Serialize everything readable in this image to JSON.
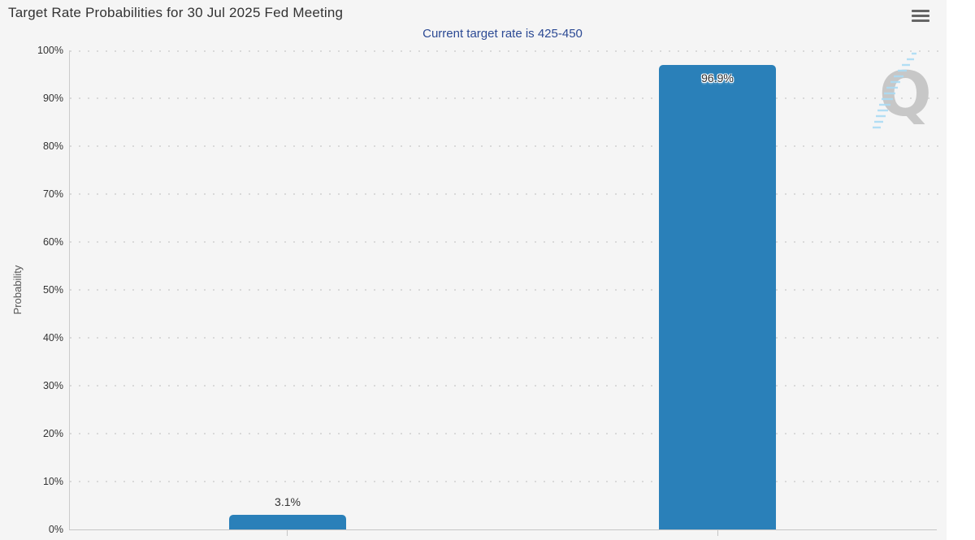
{
  "header": {
    "title": "Target Rate Probabilities for 30 Jul 2025 Fed Meeting",
    "menu_icon": "hamburger-menu-icon"
  },
  "chart_data": {
    "type": "bar",
    "title": "Target Rate Probabilities for 30 Jul 2025 Fed Meeting",
    "subtitle": "Current target rate is 425-450",
    "ylabel": "Probability",
    "xlabel": "",
    "ylim": [
      0,
      100
    ],
    "ytick_interval": 10,
    "ytick_labels": [
      "100%",
      "90%",
      "80%",
      "70%",
      "60%",
      "50%",
      "40%",
      "30%",
      "20%",
      "10%",
      "0%"
    ],
    "values": [
      3.1,
      96.9
    ],
    "value_labels": [
      "3.1%",
      "96.9%"
    ],
    "x_axis_labels_visible": false,
    "legend": "none",
    "grid": "dotted-horizontal",
    "colors": {
      "bar": "#2a80b9",
      "title_text": "#333333",
      "subtitle_text": "#2c4a94",
      "plot_background": "#f5f5f5",
      "grid_dot": "#d9d9d9",
      "axis_line": "#c5c5c5"
    }
  },
  "watermark": {
    "letter": "Q"
  }
}
